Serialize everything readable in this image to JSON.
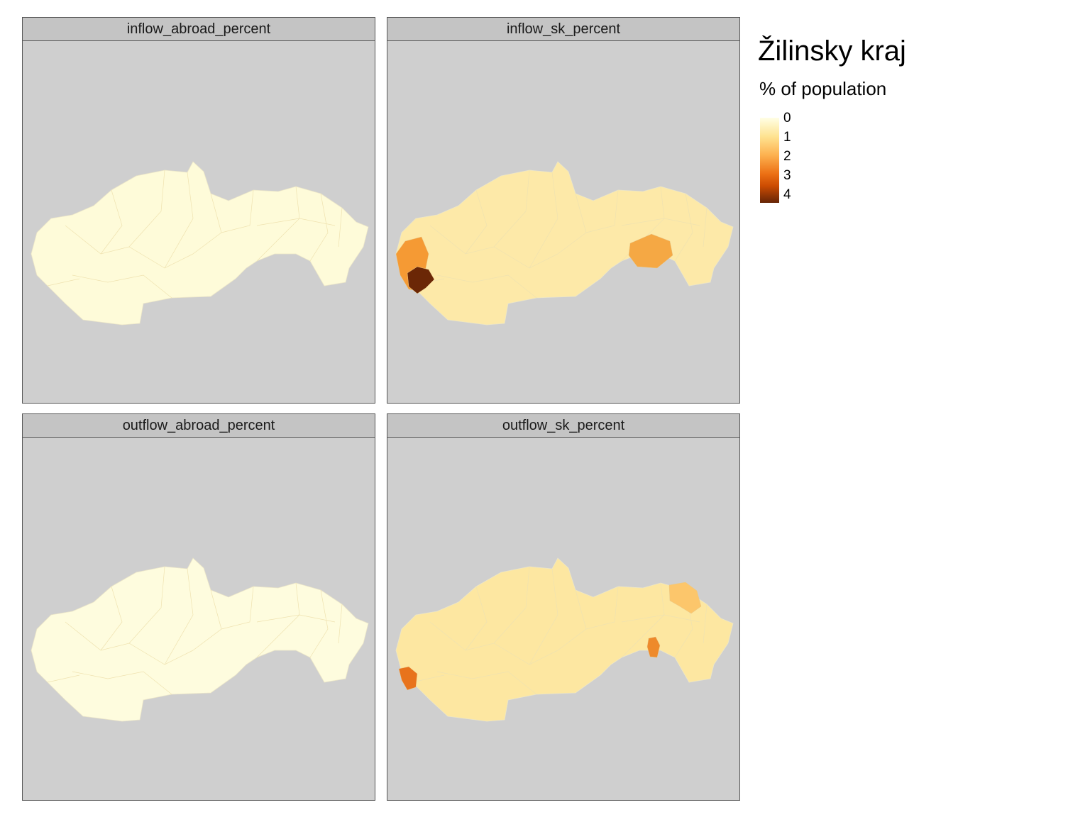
{
  "facets": [
    {
      "label": "inflow_abroad_percent",
      "fill": "#fefbd9",
      "hotspots": []
    },
    {
      "label": "inflow_sk_percent",
      "fill": "#fde9a8",
      "hotspots": [
        {
          "name": "west-high",
          "color": "#f59a34",
          "value": 2.4
        },
        {
          "name": "west-peak",
          "color": "#6b2706",
          "value": 4.0
        },
        {
          "name": "east-spot",
          "color": "#f5a844",
          "value": 2.0
        }
      ]
    },
    {
      "label": "outflow_abroad_percent",
      "fill": "#fefcde",
      "hotspots": []
    },
    {
      "label": "outflow_sk_percent",
      "fill": "#fde7a1",
      "hotspots": [
        {
          "name": "west-spot",
          "color": "#e8731c",
          "value": 2.6
        },
        {
          "name": "east-spot",
          "color": "#ee8a2b",
          "value": 2.4
        },
        {
          "name": "northeast-spot",
          "color": "#fcc66b",
          "value": 1.5
        }
      ]
    }
  ],
  "legend": {
    "title": "Žilinsky kraj",
    "subtitle": "% of population",
    "ticks": [
      "0",
      "1",
      "2",
      "3",
      "4"
    ],
    "colors": [
      "#ffffe5",
      "#fee391",
      "#fdb14f",
      "#ec7014",
      "#662506"
    ]
  }
}
